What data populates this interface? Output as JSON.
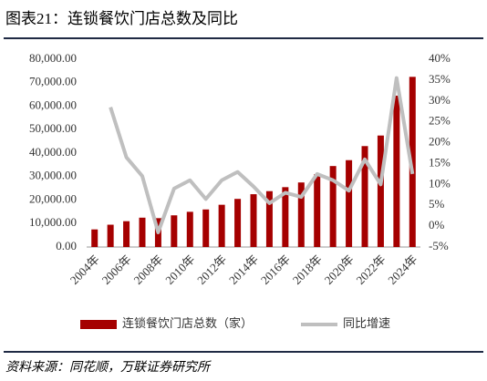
{
  "chart_data": {
    "type": "bar-line",
    "title": "图表21：连锁餐饮门店总数及同比",
    "categories": [
      "2004年",
      null,
      "2006年",
      null,
      "2008年",
      null,
      "2010年",
      null,
      "2012年",
      null,
      "2014年",
      null,
      "2016年",
      null,
      "2018年",
      null,
      "2020年",
      null,
      "2022年",
      null,
      "2024年"
    ],
    "series": [
      {
        "name": "连锁餐饮门店总数（家）",
        "type": "bar",
        "color": "#a50000",
        "values": [
          7500,
          9500,
          11000,
          12500,
          12300,
          13500,
          15000,
          16000,
          18000,
          20500,
          22500,
          23800,
          25500,
          27500,
          31000,
          34500,
          37000,
          43000,
          47500,
          64500,
          72500
        ]
      },
      {
        "name": "同比增速",
        "type": "line",
        "axis": "y2",
        "color": "#bfbfbf",
        "values": [
          null,
          28.5,
          16.5,
          12,
          -1.5,
          9,
          11,
          6.5,
          11,
          13,
          9.5,
          5.5,
          8,
          7,
          12.5,
          11,
          8.5,
          16,
          10,
          35.5,
          12.5
        ]
      }
    ],
    "ylim": [
      0,
      80000
    ],
    "yticks": [
      {
        "value": 0,
        "label": "0.00"
      },
      {
        "value": 10000,
        "label": "10,000.00"
      },
      {
        "value": 20000,
        "label": "20,000.00"
      },
      {
        "value": 30000,
        "label": "30,000.00"
      },
      {
        "value": 40000,
        "label": "40,000.00"
      },
      {
        "value": 50000,
        "label": "50,000.00"
      },
      {
        "value": 60000,
        "label": "60,000.00"
      },
      {
        "value": 70000,
        "label": "70,000.00"
      },
      {
        "value": 80000,
        "label": "80,000.00"
      }
    ],
    "y2lim": [
      -5,
      40
    ],
    "y2ticks": [
      {
        "value": -5,
        "label": "-5%"
      },
      {
        "value": 0,
        "label": "0%"
      },
      {
        "value": 5,
        "label": "5%"
      },
      {
        "value": 10,
        "label": "10%"
      },
      {
        "value": 15,
        "label": "15%"
      },
      {
        "value": 20,
        "label": "20%"
      },
      {
        "value": 25,
        "label": "25%"
      },
      {
        "value": 30,
        "label": "30%"
      },
      {
        "value": 35,
        "label": "35%"
      },
      {
        "value": 40,
        "label": "40%"
      }
    ],
    "legend": "bottom",
    "source": "资料来源：同花顺，万联证券研究所"
  }
}
